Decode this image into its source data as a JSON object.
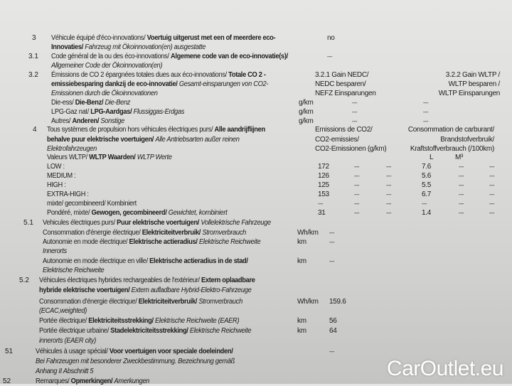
{
  "lines": [
    {
      "n": "3",
      "p": [
        [
          "r",
          "Véhicule équipé d'éco-innovations/ "
        ],
        [
          "b",
          "Voertuig uitgerust met een of meerdere eco-"
        ]
      ],
      "c": [
        "no"
      ]
    },
    {
      "p": [
        [
          "b",
          "Innovaties/ "
        ],
        [
          "i",
          "Fahrzeug mit Ökoinnovation(en) ausgestatte"
        ]
      ],
      "c": []
    },
    {
      "n": "3.1",
      "p": [
        [
          "r",
          "Code général de la ou des éco-innovations/ "
        ],
        [
          "b",
          "Algemene code van de eco-innovatie(s)/"
        ]
      ],
      "c": [
        "---"
      ]
    },
    {
      "p": [
        [
          "i",
          "Allgemeiner Code der Ökoinnovation(en)"
        ]
      ],
      "c": []
    },
    {
      "n": "3.2",
      "p": [
        [
          "r",
          "Émissions de CO 2 épargnées totales dues aux éco-innovations/ "
        ],
        [
          "b",
          "Totale CO 2 -"
        ]
      ],
      "c": [
        "3.2.1 Gain NEDC/",
        "3.2.2 Gain WLTP /"
      ]
    },
    {
      "p": [
        [
          "b",
          "emissiebesparing dankzij de eco-innovatie/ "
        ],
        [
          "i",
          "Gesamt-einsparungen von CO2-"
        ]
      ],
      "c": [
        "NEDC besparen/",
        "WLTP besparen /"
      ]
    },
    {
      "p": [
        [
          "i",
          "Emissionen durch die Ökoinnovationen"
        ]
      ],
      "c": [
        "NEFZ Einsparungen",
        "WLTP Einsparungen"
      ]
    },
    {
      "p": [
        [
          "r",
          "Die-ess/ "
        ],
        [
          "b",
          "Die-Benz/ "
        ],
        [
          "i",
          "Die-Benz"
        ]
      ],
      "c": [
        "g/km",
        "---",
        "---"
      ]
    },
    {
      "p": [
        [
          "r",
          "LPG-Gaz nat/ "
        ],
        [
          "b",
          "LPG-Aardgas/ "
        ],
        [
          "i",
          "Flussiggas-Erdgas"
        ]
      ],
      "c": [
        "g/km",
        "---",
        "---"
      ]
    },
    {
      "p": [
        [
          "r",
          "Autres/ "
        ],
        [
          "b",
          "Anderen/ "
        ],
        [
          "i",
          "Sonstige"
        ]
      ],
      "c": [
        "g/km",
        "---",
        "---"
      ]
    },
    {
      "n": "4",
      "p": [
        [
          "r",
          "Tous systèmes de propulsion hors véhicules électriques purs/ "
        ],
        [
          "b",
          "Alle aandrijflijnen"
        ]
      ],
      "c": [
        "Emissions de CO2/",
        "Consommation de carburant/"
      ]
    },
    {
      "p": [
        [
          "b",
          "behalve puur elektrische voertuigen/ "
        ],
        [
          "i",
          "Alle Antriebsarten außer reinen"
        ]
      ],
      "c": [
        "CO2-emissies/",
        "Brandstofverbruik/"
      ]
    },
    {
      "p": [
        [
          "i",
          "Elektrofahrzeugen"
        ]
      ],
      "c": [
        "CO2-Emissionen (g/km)",
        "Kraftstoffverbrauch (/100km)"
      ]
    },
    {
      "p": [
        [
          "r",
          "Valeurs WLTP/ "
        ],
        [
          "b",
          "WLTP Waarden/ "
        ],
        [
          "i",
          "WLTP Werte"
        ]
      ],
      "c": [
        "L",
        "M³"
      ]
    },
    {
      "p": [
        [
          "r",
          "LOW :"
        ]
      ],
      "c": [
        "172",
        "---",
        "---",
        "7.6",
        "---",
        "---"
      ]
    },
    {
      "p": [
        [
          "r",
          "MEDIUM :"
        ]
      ],
      "c": [
        "126",
        "---",
        "---",
        "5.6",
        "---",
        "---"
      ]
    },
    {
      "p": [
        [
          "r",
          "HIGH :"
        ]
      ],
      "c": [
        "125",
        "---",
        "---",
        "5.5",
        "---",
        "---"
      ]
    },
    {
      "p": [
        [
          "r",
          "EXTRA-HIGH :"
        ]
      ],
      "c": [
        "153",
        "---",
        "---",
        "6.7",
        "---",
        "---"
      ]
    },
    {
      "p": [
        [
          "r",
          "mixte/ gecombineerd/ Kombiniert"
        ]
      ],
      "c": [
        "---",
        "---",
        "---",
        "---",
        "---",
        "---"
      ]
    },
    {
      "p": [
        [
          "r",
          "Pondéré, mixte/ "
        ],
        [
          "b",
          "Gewogen, gecombineerd/ "
        ],
        [
          "i",
          "Gewichtet, kombiniert"
        ]
      ],
      "c": [
        "31",
        "---",
        "---",
        "1.4",
        "---",
        "---"
      ]
    },
    {
      "n": "5.1",
      "p": [
        [
          "r",
          "Vehicules électriques purs/ "
        ],
        [
          "b",
          "Puur elektrische voertuigen/ "
        ],
        [
          "i",
          "Vollelektrische Fahrzeuge"
        ]
      ],
      "c": []
    },
    {
      "p": [
        [
          "r",
          "Consommation d'énergie électrique/ "
        ],
        [
          "b",
          "Elektriciteitverbruik/ "
        ],
        [
          "i",
          "Stromverbrauch"
        ]
      ],
      "c": [
        "Wh/km",
        "---"
      ]
    },
    {
      "p": [
        [
          "r",
          "Autonomie en mode électrique/ "
        ],
        [
          "b",
          "Elektrische actieradius/ "
        ],
        [
          "i",
          "Elektrische Reichweite"
        ]
      ],
      "c": [
        "km",
        "---"
      ]
    },
    {
      "p": [
        [
          "i",
          "Innerorts"
        ]
      ],
      "c": []
    },
    {
      "p": [
        [
          "r",
          "Autonomie en mode électrique en ville/ "
        ],
        [
          "b",
          "Elektrische actieradius in de stad/"
        ]
      ],
      "c": [
        "km",
        "---"
      ]
    },
    {
      "p": [
        [
          "i",
          "Elektrische Reichweite"
        ]
      ],
      "c": []
    },
    {
      "n": "5.2",
      "p": [
        [
          "r",
          "Véhicules électriques hybrides rechargeables de l'extérieur/ "
        ],
        [
          "b",
          "Extern oplaadbare"
        ]
      ],
      "c": []
    },
    {
      "p": [
        [
          "b",
          "hybride elektrische voertuigen/ "
        ],
        [
          "i",
          "Extern aufladbare Hybrid-Elektro-Fahrzeuge"
        ]
      ],
      "c": []
    },
    {
      "p": [
        [
          "r",
          "Consommation d'énergie électrique/ "
        ],
        [
          "b",
          "Elektriciteitverbruik/ "
        ],
        [
          "i",
          "Stromverbrauch"
        ]
      ],
      "c": [
        "Wh/km",
        "159.6"
      ]
    },
    {
      "p": [
        [
          "i",
          "(ECAC,weighted)"
        ]
      ],
      "c": []
    },
    {
      "p": [
        [
          "r",
          "Portée électrique/ "
        ],
        [
          "b",
          "Elektriciteitsstrekking/ "
        ],
        [
          "i",
          "Elektrische Reichweite (EAER)"
        ]
      ],
      "c": [
        "km",
        "56"
      ]
    },
    {
      "p": [
        [
          "r",
          "Portée électrique urbaine/ "
        ],
        [
          "b",
          "Stadelektriciteitsstrekking/ "
        ],
        [
          "i",
          "Elektrische Reichweite"
        ]
      ],
      "c": [
        "km",
        "64"
      ]
    },
    {
      "p": [
        [
          "i",
          "innerorts (EAER city)"
        ]
      ],
      "c": []
    },
    {
      "n": "51",
      "p": [
        [
          "r",
          "Véhicules à usage spécial/ "
        ],
        [
          "b",
          "Voor voertuigen voor speciale doeleinden/"
        ]
      ],
      "c": [
        "---"
      ]
    },
    {
      "p": [
        [
          "i",
          "Bei Fahrzeugen mit besonderer Zweckbestimmung. Bezeichnung gemäß"
        ]
      ],
      "c": []
    },
    {
      "p": [
        [
          "i",
          "Anhang II Abschnitt 5"
        ]
      ],
      "c": []
    },
    {
      "n": "52",
      "p": [
        [
          "r",
          "Remarques/ "
        ],
        [
          "b",
          "Opmerkingen/ "
        ],
        [
          "i",
          "Amerkungen"
        ]
      ],
      "c": []
    }
  ],
  "watermark": "CarOutlet.eu"
}
